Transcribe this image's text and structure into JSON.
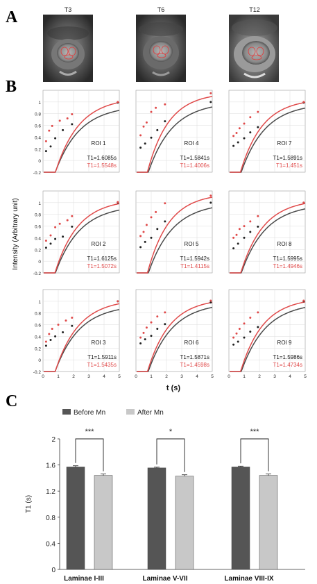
{
  "panel_labels": [
    "A",
    "B",
    "C"
  ],
  "mri_panels": [
    {
      "label": "T3",
      "type": "grayscale MRI axial slice of spinal cord with red ROI outlines"
    },
    {
      "label": "T6",
      "type": "grayscale MRI axial slice of spinal cord with red ROI outlines"
    },
    {
      "label": "T12",
      "type": "grayscale MRI axial slice of spinal cord with red ROI outlines"
    }
  ],
  "colors": {
    "before": "#4a4a4a",
    "after": "#e04a4a",
    "bar_before": "#555555",
    "bar_after": "#c8c8c8"
  },
  "chart_data": [
    {
      "type": "scatter",
      "grid_layout": "3x3",
      "ylabel": "Intensity (Arbitrary unit)",
      "xlabel": "t (s)",
      "xlim": [
        0,
        5
      ],
      "ylim": [
        -0.2,
        1.2
      ],
      "x_ticks": [
        "0",
        "1",
        "2",
        "3",
        "4",
        "5"
      ],
      "y_ticks": [
        "-0.2",
        "0",
        "0.2",
        "0.4",
        "0.6",
        "0.8",
        "1"
      ],
      "grid": true,
      "panels": [
        {
          "roi": "ROI 1",
          "t1_before": "T1=1.6085s",
          "t1_after": "T1=1.5548s",
          "before_points": [
            [
              0.2,
              0.16
            ],
            [
              0.5,
              0.24
            ],
            [
              0.8,
              0.38
            ],
            [
              1.3,
              0.52
            ],
            [
              1.9,
              0.62
            ],
            [
              4.9,
              0.99
            ]
          ],
          "after_points": [
            [
              0.2,
              0.33
            ],
            [
              0.4,
              0.51
            ],
            [
              0.6,
              0.59
            ],
            [
              1.1,
              0.68
            ],
            [
              1.6,
              0.72
            ],
            [
              1.9,
              0.79
            ],
            [
              4.9,
              1.0
            ]
          ],
          "before_tau": 1.6085,
          "after_tau": 1.5548,
          "before_amp": 0.94,
          "after_amp": 1.08
        },
        {
          "roi": "ROI 4",
          "t1_before": "T1=1.5841s",
          "t1_after": "T1=1.4006s",
          "before_points": [
            [
              0.3,
              0.22
            ],
            [
              0.6,
              0.29
            ],
            [
              1.0,
              0.39
            ],
            [
              1.4,
              0.52
            ],
            [
              1.9,
              0.67
            ],
            [
              4.9,
              1.0
            ]
          ],
          "after_points": [
            [
              0.3,
              0.43
            ],
            [
              0.5,
              0.58
            ],
            [
              0.7,
              0.65
            ],
            [
              1.0,
              0.83
            ],
            [
              1.3,
              0.9
            ],
            [
              1.9,
              0.96
            ],
            [
              4.9,
              1.15
            ]
          ],
          "before_tau": 1.5841,
          "after_tau": 1.4006,
          "before_amp": 1.0,
          "after_amp": 1.16
        },
        {
          "roi": "ROI 7",
          "t1_before": "T1=1.5891s",
          "t1_after": "T1=1.451s",
          "before_points": [
            [
              0.3,
              0.25
            ],
            [
              0.6,
              0.31
            ],
            [
              1.0,
              0.38
            ],
            [
              1.4,
              0.48
            ],
            [
              1.9,
              0.57
            ],
            [
              4.9,
              0.99
            ]
          ],
          "after_points": [
            [
              0.3,
              0.42
            ],
            [
              0.5,
              0.47
            ],
            [
              0.7,
              0.55
            ],
            [
              1.0,
              0.63
            ],
            [
              1.4,
              0.74
            ],
            [
              1.9,
              0.83
            ],
            [
              4.9,
              1.0
            ]
          ],
          "before_tau": 1.5891,
          "after_tau": 1.451,
          "before_amp": 0.98,
          "after_amp": 1.06
        },
        {
          "roi": "ROI 2",
          "t1_before": "T1=1.6125s",
          "t1_after": "T1=1.5072s",
          "before_points": [
            [
              0.2,
              0.23
            ],
            [
              0.5,
              0.3
            ],
            [
              0.8,
              0.38
            ],
            [
              1.3,
              0.42
            ],
            [
              1.9,
              0.59
            ],
            [
              4.9,
              1.0
            ]
          ],
          "after_points": [
            [
              0.2,
              0.35
            ],
            [
              0.5,
              0.44
            ],
            [
              0.8,
              0.58
            ],
            [
              1.1,
              0.64
            ],
            [
              1.6,
              0.7
            ],
            [
              1.9,
              0.77
            ],
            [
              4.9,
              1.01
            ]
          ],
          "before_tau": 1.6125,
          "after_tau": 1.5072,
          "before_amp": 0.96,
          "after_amp": 1.06
        },
        {
          "roi": "ROI 5",
          "t1_before": "T1=1.5942s",
          "t1_after": "T1=1.4115s",
          "before_points": [
            [
              0.3,
              0.24
            ],
            [
              0.6,
              0.33
            ],
            [
              1.0,
              0.4
            ],
            [
              1.4,
              0.55
            ],
            [
              1.9,
              0.68
            ],
            [
              4.9,
              1.0
            ]
          ],
          "after_points": [
            [
              0.3,
              0.43
            ],
            [
              0.5,
              0.5
            ],
            [
              0.7,
              0.62
            ],
            [
              1.0,
              0.75
            ],
            [
              1.3,
              0.84
            ],
            [
              1.9,
              0.99
            ],
            [
              4.9,
              1.12
            ]
          ],
          "before_tau": 1.5942,
          "after_tau": 1.4115,
          "before_amp": 1.0,
          "after_amp": 1.16
        },
        {
          "roi": "ROI 8",
          "t1_before": "T1=1.5995s",
          "t1_after": "T1=1.4946s",
          "before_points": [
            [
              0.3,
              0.22
            ],
            [
              0.6,
              0.3
            ],
            [
              1.0,
              0.4
            ],
            [
              1.4,
              0.5
            ],
            [
              1.9,
              0.59
            ],
            [
              4.9,
              1.0
            ]
          ],
          "after_points": [
            [
              0.3,
              0.4
            ],
            [
              0.5,
              0.45
            ],
            [
              0.7,
              0.55
            ],
            [
              1.0,
              0.6
            ],
            [
              1.4,
              0.68
            ],
            [
              1.9,
              0.77
            ],
            [
              4.9,
              1.0
            ]
          ],
          "before_tau": 1.5995,
          "after_tau": 1.4946,
          "before_amp": 0.98,
          "after_amp": 1.06
        },
        {
          "roi": "ROI 3",
          "t1_before": "T1=1.5911s",
          "t1_after": "T1=1.5435s",
          "before_points": [
            [
              0.2,
              0.24
            ],
            [
              0.5,
              0.34
            ],
            [
              0.8,
              0.4
            ],
            [
              1.3,
              0.47
            ],
            [
              1.9,
              0.58
            ],
            [
              4.9,
              1.0
            ]
          ],
          "after_points": [
            [
              0.2,
              0.31
            ],
            [
              0.4,
              0.44
            ],
            [
              0.6,
              0.53
            ],
            [
              1.0,
              0.6
            ],
            [
              1.5,
              0.67
            ],
            [
              1.9,
              0.72
            ],
            [
              4.9,
              1.0
            ]
          ],
          "before_tau": 1.5911,
          "after_tau": 1.5435,
          "before_amp": 0.94,
          "after_amp": 1.04
        },
        {
          "roi": "ROI 6",
          "t1_before": "T1=1.5871s",
          "t1_after": "T1=1.4598s",
          "before_points": [
            [
              0.3,
              0.28
            ],
            [
              0.6,
              0.35
            ],
            [
              1.0,
              0.41
            ],
            [
              1.4,
              0.53
            ],
            [
              1.9,
              0.61
            ],
            [
              4.9,
              0.98
            ]
          ],
          "after_points": [
            [
              0.3,
              0.38
            ],
            [
              0.5,
              0.46
            ],
            [
              0.7,
              0.55
            ],
            [
              1.0,
              0.64
            ],
            [
              1.4,
              0.74
            ],
            [
              1.9,
              0.81
            ],
            [
              4.9,
              1.01
            ]
          ],
          "before_tau": 1.5871,
          "after_tau": 1.4598,
          "before_amp": 0.98,
          "after_amp": 1.05
        },
        {
          "roi": "ROI 9",
          "t1_before": "T1=1.5986s",
          "t1_after": "T1=1.4734s",
          "before_points": [
            [
              0.3,
              0.26
            ],
            [
              0.6,
              0.31
            ],
            [
              1.0,
              0.38
            ],
            [
              1.4,
              0.48
            ],
            [
              1.9,
              0.56
            ],
            [
              4.9,
              1.0
            ]
          ],
          "after_points": [
            [
              0.3,
              0.38
            ],
            [
              0.5,
              0.45
            ],
            [
              0.7,
              0.53
            ],
            [
              1.0,
              0.62
            ],
            [
              1.4,
              0.72
            ],
            [
              1.9,
              0.81
            ],
            [
              4.9,
              1.01
            ]
          ],
          "before_tau": 1.5986,
          "after_tau": 1.4734,
          "before_amp": 0.98,
          "after_amp": 1.06
        }
      ]
    },
    {
      "type": "bar",
      "categories": [
        "Laminae I-III",
        "Laminae V-VII",
        "Laminae VIII-IX"
      ],
      "series": [
        {
          "name": "Before Mn",
          "values": [
            1.57,
            1.555,
            1.57
          ],
          "errors": [
            0.018,
            0.012,
            0.012
          ]
        },
        {
          "name": "After Mn",
          "values": [
            1.44,
            1.43,
            1.44
          ],
          "errors": [
            0.022,
            0.02,
            0.022
          ]
        }
      ],
      "ylabel": "T1 (s)",
      "ylim": [
        0,
        2
      ],
      "y_ticks": [
        "0",
        "0.4",
        "0.8",
        "1.2",
        "1.6",
        "2"
      ],
      "significance": [
        "***",
        "*",
        "***"
      ],
      "legend": "top-left"
    }
  ]
}
